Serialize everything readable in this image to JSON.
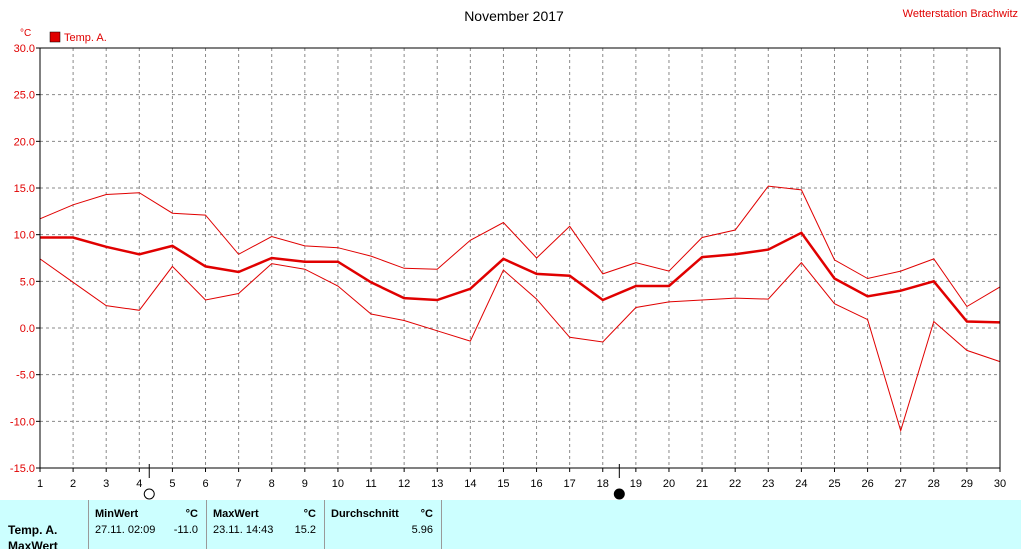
{
  "station": "Wetterstation Brachwitz",
  "colors": {
    "series": "#e00000",
    "text": "#000000",
    "grid": "#8a8a8a",
    "stats_bg": "#ccffff"
  },
  "chart_data": {
    "type": "line",
    "title": "November 2017",
    "ylabel": "°C",
    "ylim": [
      -15,
      30
    ],
    "yticks": [
      -15,
      -10,
      -5,
      0,
      5,
      10,
      15,
      20,
      25,
      30
    ],
    "ytick_labels": [
      "-15.0",
      "-10.0",
      "-5.0",
      "0.0",
      "5.0",
      "10.0",
      "15.0",
      "20.0",
      "25.0",
      "30.0"
    ],
    "x": [
      1,
      2,
      3,
      4,
      5,
      6,
      7,
      8,
      9,
      10,
      11,
      12,
      13,
      14,
      15,
      16,
      17,
      18,
      19,
      20,
      21,
      22,
      23,
      24,
      25,
      26,
      27,
      28,
      29,
      30
    ],
    "legend": "Temp. A.",
    "legend_position": "top-left",
    "grid": true,
    "series": [
      {
        "role": "max",
        "values": [
          11.7,
          13.2,
          14.3,
          14.5,
          12.3,
          12.1,
          7.9,
          9.8,
          8.8,
          8.6,
          7.7,
          6.4,
          6.3,
          9.4,
          11.3,
          7.5,
          10.9,
          5.8,
          7.0,
          6.1,
          9.7,
          10.5,
          15.2,
          14.8,
          7.3,
          5.3,
          6.1,
          7.4,
          2.3,
          4.4
        ]
      },
      {
        "role": "mean",
        "values": [
          9.7,
          9.7,
          8.7,
          7.9,
          8.8,
          6.6,
          6.0,
          7.5,
          7.1,
          7.1,
          4.9,
          3.2,
          3.0,
          4.2,
          7.4,
          5.8,
          5.6,
          3.0,
          4.5,
          4.5,
          7.6,
          7.9,
          8.4,
          10.2,
          5.3,
          3.4,
          4.0,
          5.0,
          0.7,
          0.6
        ]
      },
      {
        "role": "min",
        "values": [
          7.4,
          4.9,
          2.4,
          1.9,
          6.6,
          3.0,
          3.7,
          6.9,
          6.3,
          4.5,
          1.5,
          0.8,
          -0.3,
          -1.4,
          6.2,
          3.1,
          -1.0,
          -1.5,
          2.2,
          2.8,
          3.0,
          3.2,
          3.1,
          7.0,
          2.6,
          0.9,
          -11.0,
          0.7,
          -2.4,
          -3.6
        ]
      }
    ],
    "moon_phases": [
      {
        "day": 4.3,
        "phase": "full"
      },
      {
        "day": 18.5,
        "phase": "new"
      }
    ]
  },
  "stats": {
    "row_label": "Temp. A.",
    "row_label_2": "MaxWert",
    "min": {
      "header": "MinWert",
      "unit": "°C",
      "time": "27.11.  02:09",
      "value": "-11.0"
    },
    "max": {
      "header": "MaxWert",
      "unit": "°C",
      "time": "23.11.  14:43",
      "value": "15.2"
    },
    "avg": {
      "header": "Durchschnitt",
      "unit": "°C",
      "value": "5.96"
    }
  }
}
